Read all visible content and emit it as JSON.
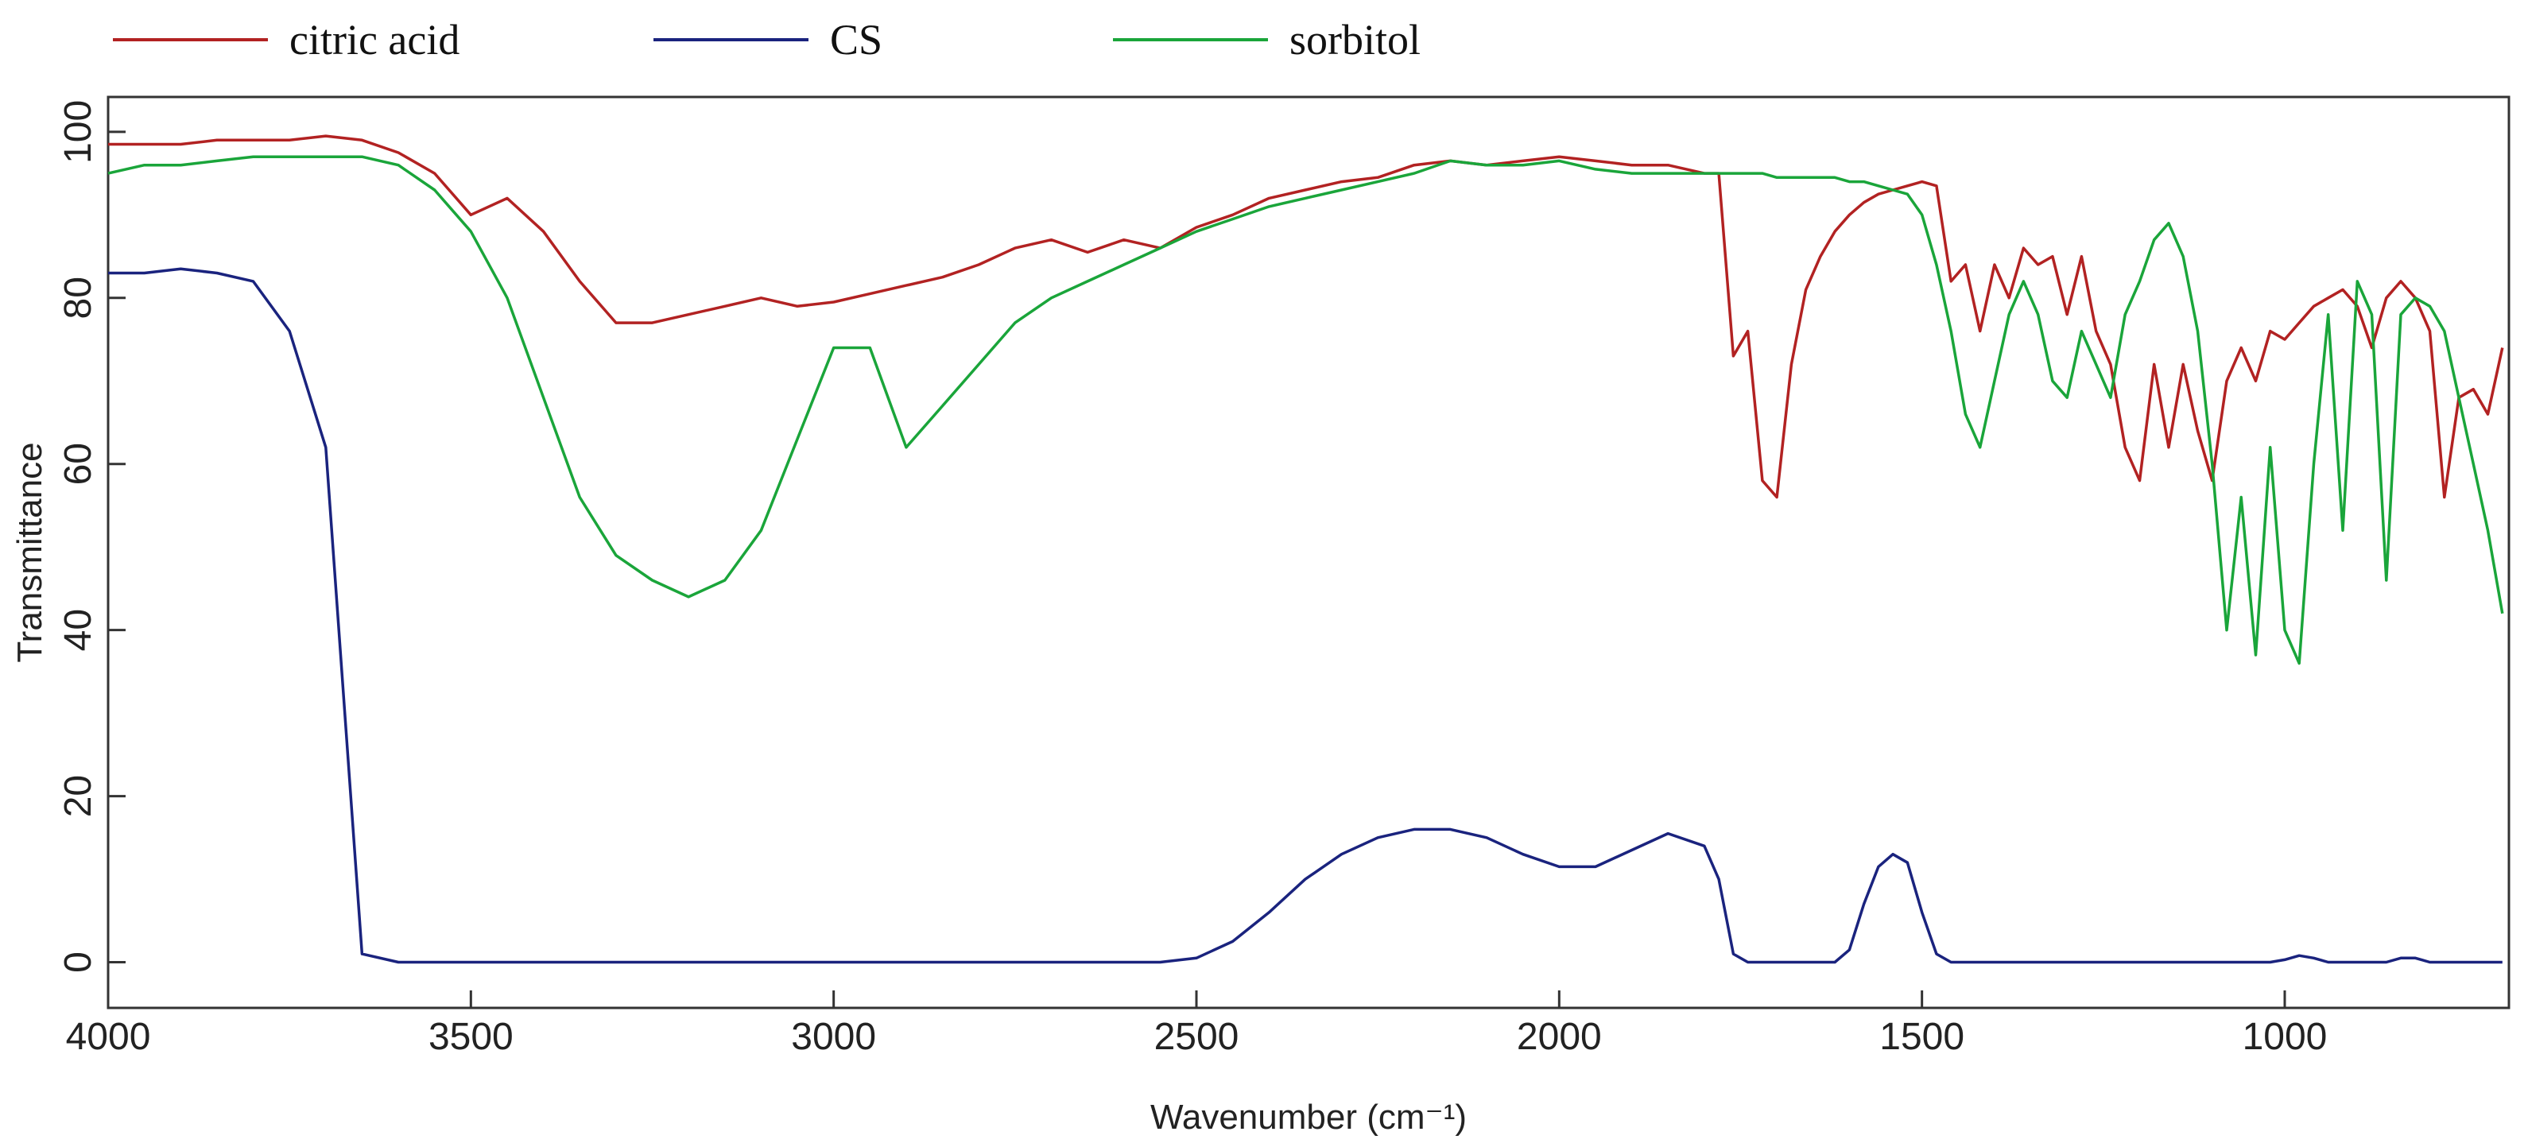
{
  "chart_data": {
    "type": "line",
    "x_label": "Wavenumber (cm⁻¹)",
    "y_label": "Transmittance",
    "xlim": [
      4000,
      691
    ],
    "ylim": [
      -5.5,
      104.2
    ],
    "xticks": [
      4000,
      3500,
      3000,
      2500,
      2000,
      1500,
      1000
    ],
    "yticks": [
      0,
      20,
      40,
      60,
      80,
      100
    ],
    "x": [
      4000,
      3950,
      3900,
      3850,
      3800,
      3750,
      3700,
      3650,
      3600,
      3550,
      3500,
      3450,
      3400,
      3350,
      3300,
      3250,
      3200,
      3150,
      3100,
      3050,
      3000,
      2950,
      2900,
      2850,
      2800,
      2750,
      2700,
      2650,
      2600,
      2550,
      2500,
      2450,
      2400,
      2350,
      2300,
      2250,
      2200,
      2150,
      2100,
      2050,
      2000,
      1950,
      1900,
      1850,
      1800,
      1780,
      1760,
      1740,
      1720,
      1700,
      1680,
      1660,
      1640,
      1620,
      1600,
      1580,
      1560,
      1540,
      1520,
      1500,
      1480,
      1460,
      1440,
      1420,
      1400,
      1380,
      1360,
      1340,
      1320,
      1300,
      1280,
      1260,
      1240,
      1220,
      1200,
      1180,
      1160,
      1140,
      1120,
      1100,
      1080,
      1060,
      1040,
      1020,
      1000,
      980,
      960,
      940,
      920,
      900,
      880,
      860,
      840,
      820,
      800,
      780,
      760,
      740,
      720,
      700
    ],
    "series": [
      {
        "name": "citric acid",
        "color": "#b22222",
        "values": [
          98.5,
          98.5,
          98.5,
          99,
          99,
          99,
          99.5,
          99,
          97.5,
          95,
          90,
          92,
          88,
          82,
          77,
          77,
          78,
          79,
          80,
          79,
          79.5,
          80.5,
          81.5,
          82.5,
          84,
          86,
          87,
          85.5,
          87,
          86,
          88.5,
          90,
          92,
          93,
          94,
          94.5,
          96,
          96.5,
          96,
          96.5,
          97,
          96.5,
          96,
          96,
          95,
          95,
          73,
          76,
          58,
          56,
          72,
          81,
          85,
          88,
          90,
          91.5,
          92.5,
          93,
          93.5,
          94,
          93.5,
          82,
          84,
          76,
          84,
          80,
          86,
          84,
          85,
          78,
          85,
          76,
          72,
          62,
          58,
          72,
          62,
          72,
          64,
          58,
          70,
          74,
          70,
          76,
          75,
          77,
          79,
          80,
          81,
          79,
          74,
          80,
          82,
          80,
          76,
          56,
          68,
          69,
          66,
          74
        ]
      },
      {
        "name": "CS",
        "color": "#1a237e",
        "values": [
          83,
          83,
          83.5,
          83,
          82,
          76,
          62,
          1,
          0,
          0,
          0,
          0,
          0,
          0,
          0,
          0,
          0,
          0,
          0,
          0,
          0,
          0,
          0,
          0,
          0,
          0,
          0,
          0,
          0,
          0,
          0.5,
          2.5,
          6,
          10,
          13,
          15,
          16,
          16,
          15,
          13,
          11.5,
          11.5,
          13.5,
          15.5,
          14,
          10,
          1,
          0,
          0,
          0,
          0,
          0,
          0,
          0,
          1.5,
          7,
          11.5,
          13,
          12,
          6,
          1,
          0,
          0,
          0,
          0,
          0,
          0,
          0,
          0,
          0,
          0,
          0,
          0,
          0,
          0,
          0,
          0,
          0,
          0,
          0,
          0,
          0,
          0,
          0,
          0.3,
          0.8,
          0.5,
          0,
          0,
          0,
          0,
          0,
          0.5,
          0.5,
          0,
          0,
          0,
          0,
          0,
          0
        ]
      },
      {
        "name": "sorbitol",
        "color": "#1aa53a",
        "values": [
          95,
          96,
          96,
          96.5,
          97,
          97,
          97,
          97,
          96,
          93,
          88,
          80,
          68,
          56,
          49,
          46,
          44,
          46,
          52,
          63,
          74,
          74,
          62,
          67,
          72,
          77,
          80,
          82,
          84,
          86,
          88,
          89.5,
          91,
          92,
          93,
          94,
          95,
          96.5,
          96,
          96,
          96.5,
          95.5,
          95,
          95,
          95,
          95,
          95,
          95,
          95,
          94.5,
          94.5,
          94.5,
          94.5,
          94.5,
          94,
          94,
          93.5,
          93,
          92.5,
          90,
          84,
          76,
          66,
          62,
          70,
          78,
          82,
          78,
          70,
          68,
          76,
          72,
          68,
          78,
          82,
          87,
          89,
          85,
          76,
          60,
          40,
          56,
          37,
          62,
          40,
          36,
          60,
          78,
          52,
          82,
          78,
          46,
          78,
          80,
          79,
          76,
          68,
          60,
          52,
          42
        ]
      }
    ]
  }
}
